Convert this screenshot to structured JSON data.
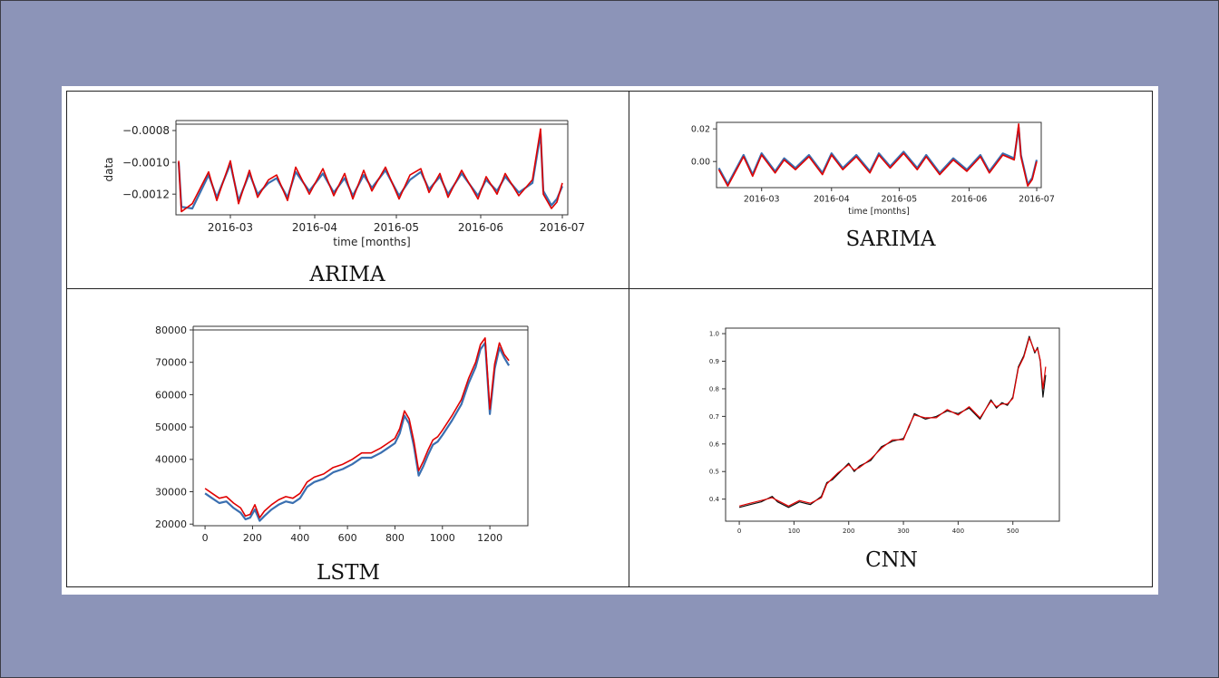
{
  "chart_data": [
    {
      "type": "line",
      "caption": "ARIMA",
      "ylabel": "data",
      "xlabel": "time [months]",
      "x_ticks": [
        "2016-03",
        "2016-04",
        "2016-05",
        "2016-06",
        "2016-07"
      ],
      "x_range": [
        "2016-02-10",
        "2016-07-03"
      ],
      "y_ticks": [
        -0.0008,
        -0.001,
        -0.0012
      ],
      "y_tick_labels": [
        "−0.0008",
        "−0.0010",
        "−0.0012"
      ],
      "ylim": [
        -0.00133,
        -0.00076
      ],
      "series": [
        {
          "color": "#3a6fb0",
          "x": [
            "2016-02-11",
            "2016-02-12",
            "2016-02-16",
            "2016-02-22",
            "2016-02-25",
            "2016-03-01",
            "2016-03-04",
            "2016-03-08",
            "2016-03-11",
            "2016-03-15",
            "2016-03-18",
            "2016-03-22",
            "2016-03-25",
            "2016-03-30",
            "2016-04-04",
            "2016-04-08",
            "2016-04-12",
            "2016-04-15",
            "2016-04-19",
            "2016-04-22",
            "2016-04-27",
            "2016-05-02",
            "2016-05-06",
            "2016-05-10",
            "2016-05-13",
            "2016-05-17",
            "2016-05-20",
            "2016-05-25",
            "2016-05-31",
            "2016-06-03",
            "2016-06-07",
            "2016-06-10",
            "2016-06-15",
            "2016-06-20",
            "2016-06-23",
            "2016-06-24",
            "2016-06-27",
            "2016-06-29",
            "2016-07-01"
          ],
          "values": [
            -0.001,
            -0.00128,
            -0.00129,
            -0.00108,
            -0.00122,
            -0.00101,
            -0.00124,
            -0.00107,
            -0.0012,
            -0.00113,
            -0.0011,
            -0.00122,
            -0.00106,
            -0.00118,
            -0.00107,
            -0.00119,
            -0.0011,
            -0.00121,
            -0.00108,
            -0.00116,
            -0.00105,
            -0.00121,
            -0.00111,
            -0.00106,
            -0.00117,
            -0.00109,
            -0.0012,
            -0.00107,
            -0.00121,
            -0.00111,
            -0.00118,
            -0.00109,
            -0.00119,
            -0.00113,
            -0.00082,
            -0.00118,
            -0.00127,
            -0.00123,
            -0.00115
          ]
        },
        {
          "color": "#e00000",
          "x": [
            "2016-02-11",
            "2016-02-12",
            "2016-02-16",
            "2016-02-22",
            "2016-02-25",
            "2016-03-01",
            "2016-03-04",
            "2016-03-08",
            "2016-03-11",
            "2016-03-15",
            "2016-03-18",
            "2016-03-22",
            "2016-03-25",
            "2016-03-30",
            "2016-04-04",
            "2016-04-08",
            "2016-04-12",
            "2016-04-15",
            "2016-04-19",
            "2016-04-22",
            "2016-04-27",
            "2016-05-02",
            "2016-05-06",
            "2016-05-10",
            "2016-05-13",
            "2016-05-17",
            "2016-05-20",
            "2016-05-25",
            "2016-05-31",
            "2016-06-03",
            "2016-06-07",
            "2016-06-10",
            "2016-06-15",
            "2016-06-20",
            "2016-06-23",
            "2016-06-24",
            "2016-06-27",
            "2016-06-29",
            "2016-07-01"
          ],
          "values": [
            -0.00099,
            -0.00131,
            -0.00126,
            -0.00106,
            -0.00124,
            -0.00099,
            -0.00126,
            -0.00105,
            -0.00122,
            -0.00111,
            -0.00108,
            -0.00124,
            -0.00103,
            -0.0012,
            -0.00104,
            -0.00121,
            -0.00107,
            -0.00123,
            -0.00105,
            -0.00118,
            -0.00103,
            -0.00123,
            -0.00108,
            -0.00104,
            -0.00119,
            -0.00107,
            -0.00122,
            -0.00105,
            -0.00123,
            -0.00109,
            -0.0012,
            -0.00107,
            -0.00121,
            -0.00111,
            -0.00079,
            -0.0012,
            -0.00129,
            -0.00125,
            -0.00113
          ]
        }
      ]
    },
    {
      "type": "line",
      "caption": "SARIMA",
      "xlabel": "time [months]",
      "x_ticks": [
        "2016-03",
        "2016-04",
        "2016-05",
        "2016-06",
        "2016-07"
      ],
      "x_range": [
        "2016-02-10",
        "2016-07-03"
      ],
      "y_ticks": [
        0.02,
        0.0
      ],
      "y_tick_labels": [
        "0.02",
        "0.00"
      ],
      "ylim": [
        -0.016,
        0.024
      ],
      "series": [
        {
          "color": "#3a6fb0",
          "x": [
            "2016-02-11",
            "2016-02-15",
            "2016-02-22",
            "2016-02-26",
            "2016-03-01",
            "2016-03-07",
            "2016-03-11",
            "2016-03-16",
            "2016-03-22",
            "2016-03-28",
            "2016-04-01",
            "2016-04-06",
            "2016-04-12",
            "2016-04-18",
            "2016-04-22",
            "2016-04-27",
            "2016-05-03",
            "2016-05-09",
            "2016-05-13",
            "2016-05-19",
            "2016-05-25",
            "2016-05-31",
            "2016-06-06",
            "2016-06-10",
            "2016-06-16",
            "2016-06-21",
            "2016-06-23",
            "2016-06-24",
            "2016-06-27",
            "2016-06-29",
            "2016-07-01"
          ],
          "values": [
            -0.004,
            -0.014,
            0.004,
            -0.008,
            0.005,
            -0.006,
            0.002,
            -0.004,
            0.004,
            -0.007,
            0.005,
            -0.004,
            0.004,
            -0.006,
            0.005,
            -0.003,
            0.006,
            -0.004,
            0.004,
            -0.007,
            0.002,
            -0.005,
            0.004,
            -0.006,
            0.005,
            0.002,
            0.021,
            0.004,
            -0.014,
            -0.01,
            0.001
          ]
        },
        {
          "color": "#e00000",
          "x": [
            "2016-02-11",
            "2016-02-15",
            "2016-02-22",
            "2016-02-26",
            "2016-03-01",
            "2016-03-07",
            "2016-03-11",
            "2016-03-16",
            "2016-03-22",
            "2016-03-28",
            "2016-04-01",
            "2016-04-06",
            "2016-04-12",
            "2016-04-18",
            "2016-04-22",
            "2016-04-27",
            "2016-05-03",
            "2016-05-09",
            "2016-05-13",
            "2016-05-19",
            "2016-05-25",
            "2016-05-31",
            "2016-06-06",
            "2016-06-10",
            "2016-06-16",
            "2016-06-21",
            "2016-06-23",
            "2016-06-24",
            "2016-06-27",
            "2016-06-29",
            "2016-07-01"
          ],
          "values": [
            -0.005,
            -0.015,
            0.003,
            -0.009,
            0.004,
            -0.007,
            0.001,
            -0.005,
            0.003,
            -0.008,
            0.004,
            -0.005,
            0.003,
            -0.007,
            0.004,
            -0.004,
            0.005,
            -0.005,
            0.003,
            -0.008,
            0.001,
            -0.006,
            0.003,
            -0.007,
            0.004,
            0.001,
            0.023,
            0.003,
            -0.015,
            -0.011,
            0.0
          ]
        }
      ]
    },
    {
      "type": "line",
      "caption": "LSTM",
      "x_ticks": [
        0,
        200,
        400,
        600,
        800,
        1000,
        1200
      ],
      "y_ticks": [
        20000,
        30000,
        40000,
        50000,
        60000,
        70000,
        80000
      ],
      "xlim": [
        -50,
        1360
      ],
      "ylim": [
        19500,
        80000
      ],
      "series": [
        {
          "color": "#3a6fb0",
          "x": [
            0,
            30,
            60,
            90,
            120,
            150,
            170,
            190,
            210,
            230,
            250,
            280,
            310,
            340,
            370,
            400,
            430,
            460,
            500,
            540,
            580,
            620,
            660,
            700,
            740,
            770,
            800,
            820,
            840,
            860,
            880,
            900,
            920,
            940,
            960,
            980,
            1000,
            1040,
            1080,
            1110,
            1140,
            1160,
            1180,
            1200,
            1220,
            1240,
            1260,
            1280
          ],
          "values": [
            29500,
            28000,
            26500,
            27000,
            25000,
            23500,
            21500,
            22000,
            24500,
            21000,
            22500,
            24500,
            26000,
            27000,
            26500,
            28000,
            31500,
            33000,
            34000,
            36000,
            37000,
            38500,
            40500,
            40500,
            42000,
            43500,
            45000,
            48000,
            53500,
            51000,
            44000,
            35000,
            38000,
            41500,
            44500,
            45500,
            47500,
            52000,
            57000,
            63500,
            68500,
            74000,
            76000,
            54000,
            68000,
            74500,
            71500,
            69000
          ]
        },
        {
          "color": "#e00000",
          "x": [
            0,
            30,
            60,
            90,
            120,
            150,
            170,
            190,
            210,
            230,
            250,
            280,
            310,
            340,
            370,
            400,
            430,
            460,
            500,
            540,
            580,
            620,
            660,
            700,
            740,
            770,
            800,
            820,
            840,
            860,
            880,
            900,
            920,
            940,
            960,
            980,
            1000,
            1040,
            1080,
            1110,
            1140,
            1160,
            1180,
            1200,
            1220,
            1240,
            1260,
            1280
          ],
          "values": [
            31000,
            29500,
            28000,
            28500,
            26500,
            25000,
            22500,
            23000,
            26000,
            22000,
            24000,
            26000,
            27500,
            28500,
            28000,
            29500,
            33000,
            34500,
            35500,
            37500,
            38500,
            40000,
            42000,
            42000,
            43500,
            45000,
            46500,
            49500,
            55000,
            52500,
            45500,
            36500,
            39500,
            43000,
            46000,
            47000,
            49000,
            53500,
            58500,
            65000,
            70000,
            75500,
            77500,
            55500,
            69500,
            76000,
            72500,
            70500
          ]
        }
      ]
    },
    {
      "type": "line",
      "caption": "CNN",
      "x_ticks": [
        0,
        100,
        200,
        300,
        400,
        500
      ],
      "y_ticks": [
        0.4,
        0.5,
        0.6,
        0.7,
        0.8,
        0.9,
        1.0
      ],
      "y_tick_labels": [
        "0.4",
        "0.5",
        "0.6",
        "0.7",
        "0.8",
        "0.9",
        "1.0"
      ],
      "xlim": [
        -25,
        585
      ],
      "ylim": [
        0.32,
        1.02
      ],
      "series": [
        {
          "color": "#111111",
          "x": [
            0,
            20,
            40,
            60,
            70,
            90,
            110,
            130,
            150,
            160,
            170,
            180,
            200,
            210,
            220,
            240,
            260,
            280,
            300,
            310,
            320,
            340,
            360,
            380,
            400,
            420,
            440,
            460,
            470,
            480,
            490,
            500,
            510,
            520,
            530,
            540,
            545,
            550,
            555,
            560
          ],
          "values": [
            0.37,
            0.38,
            0.39,
            0.41,
            0.39,
            0.37,
            0.39,
            0.38,
            0.41,
            0.46,
            0.47,
            0.49,
            0.53,
            0.5,
            0.52,
            0.54,
            0.59,
            0.61,
            0.62,
            0.66,
            0.71,
            0.69,
            0.7,
            0.72,
            0.71,
            0.73,
            0.69,
            0.76,
            0.73,
            0.75,
            0.74,
            0.77,
            0.88,
            0.92,
            0.99,
            0.93,
            0.95,
            0.9,
            0.77,
            0.85
          ]
        },
        {
          "color": "#e00000",
          "x": [
            0,
            20,
            40,
            60,
            70,
            90,
            110,
            130,
            150,
            160,
            170,
            180,
            200,
            210,
            220,
            240,
            260,
            280,
            300,
            310,
            320,
            340,
            360,
            380,
            400,
            420,
            440,
            460,
            470,
            480,
            490,
            500,
            510,
            520,
            530,
            540,
            545,
            550,
            555,
            560
          ],
          "values": [
            0.375,
            0.385,
            0.395,
            0.405,
            0.395,
            0.375,
            0.395,
            0.385,
            0.405,
            0.455,
            0.475,
            0.495,
            0.525,
            0.505,
            0.515,
            0.545,
            0.585,
            0.615,
            0.615,
            0.665,
            0.705,
            0.695,
            0.695,
            0.725,
            0.705,
            0.735,
            0.695,
            0.755,
            0.735,
            0.745,
            0.745,
            0.765,
            0.875,
            0.915,
            0.985,
            0.935,
            0.945,
            0.905,
            0.8,
            0.88
          ]
        }
      ]
    }
  ]
}
